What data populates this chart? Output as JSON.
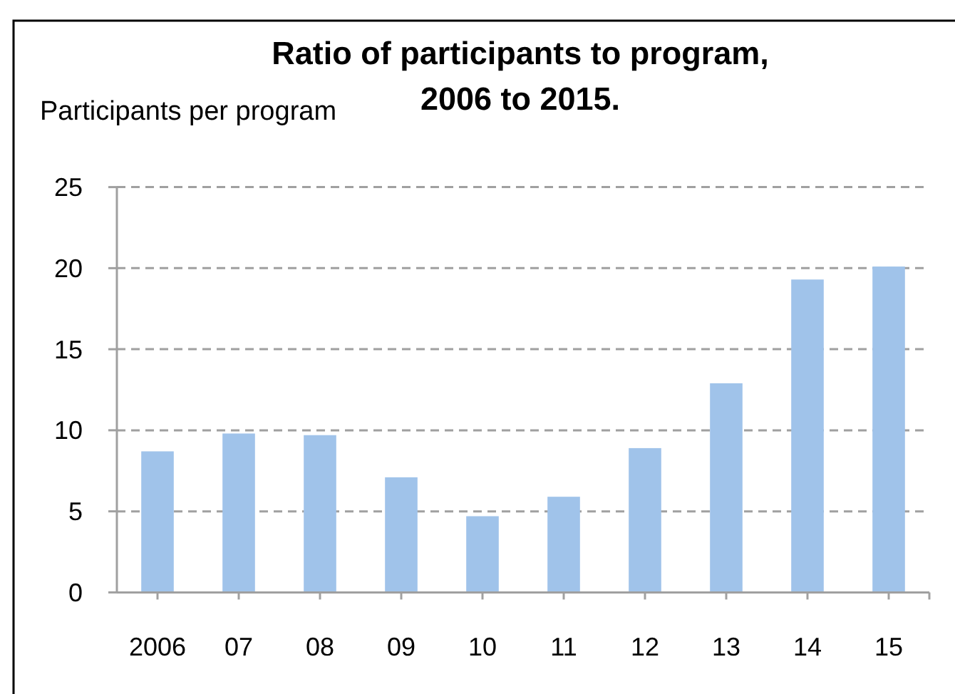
{
  "chart_data": {
    "type": "bar",
    "title": "Ratio of participants to program,\n2006 to 2015.",
    "ylabel": "Participants per program",
    "categories": [
      "2006",
      "07",
      "08",
      "09",
      "10",
      "11",
      "12",
      "13",
      "14",
      "15"
    ],
    "values": [
      8.7,
      9.8,
      9.7,
      7.1,
      4.7,
      5.9,
      8.9,
      12.9,
      19.3,
      20.1
    ],
    "color": "#a0c3ea",
    "ylim": [
      0,
      25
    ],
    "yticks": [
      0,
      5,
      10,
      15,
      20,
      25
    ],
    "grid": "y"
  }
}
